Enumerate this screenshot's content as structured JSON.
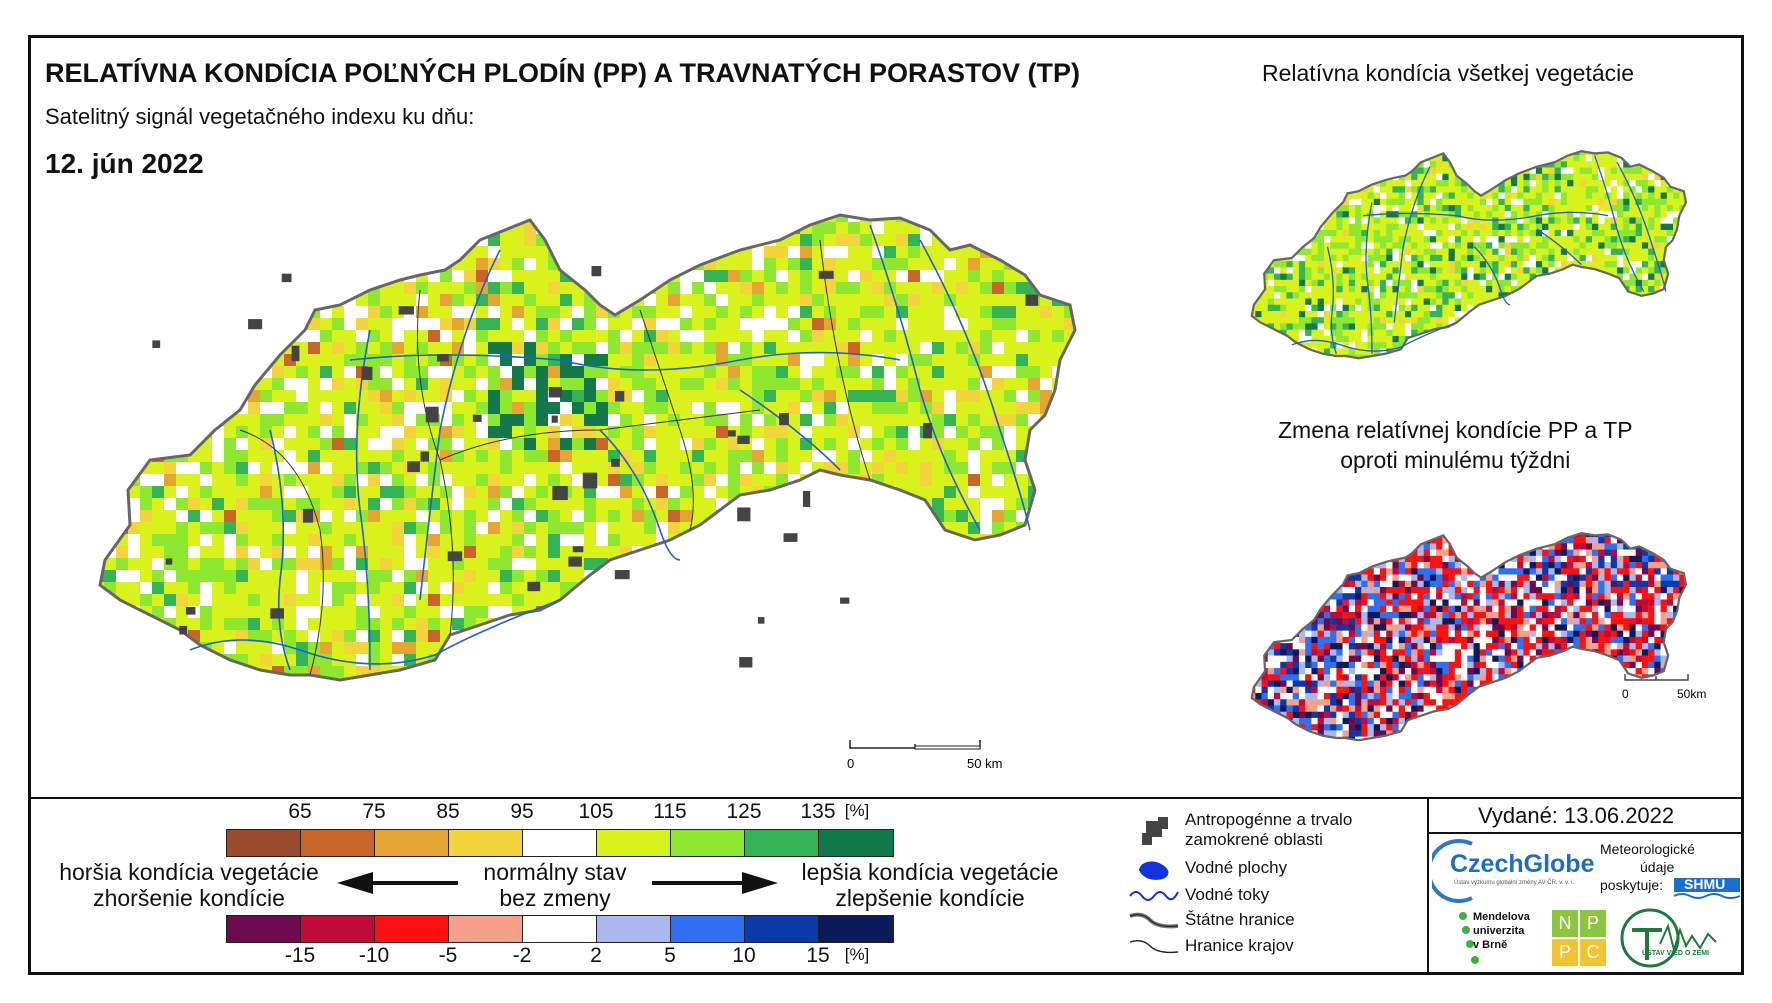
{
  "title": "RELATÍVNA KONDÍCIA POĽNÝCH PLODÍN (PP) A TRAVNATÝCH PORASTOV (TP)",
  "subtitle": "Satelitný signál vegetačného indexu ku dňu:",
  "date": "12. jún 2022",
  "right_maps": {
    "top_title": "Relatívna kondícia všetkej vegetácie",
    "bottom_title_line1": "Zmena relatívnej kondície PP a TP",
    "bottom_title_line2": "oproti minulému týždni"
  },
  "scale_main": {
    "start": "0",
    "end": "50 km"
  },
  "scale_small": {
    "start": "0",
    "end": "50km"
  },
  "legend": {
    "condition_ticks": [
      "65",
      "75",
      "85",
      "95",
      "105",
      "115",
      "125",
      "135",
      "[%]"
    ],
    "condition_colors": [
      "#9c4a2e",
      "#c8662a",
      "#e5a533",
      "#f3d43a",
      "#ffffff",
      "#d9f21c",
      "#8ee830",
      "#34b454",
      "#12794a"
    ],
    "change_ticks": [
      "-15",
      "-10",
      "-5",
      "-2",
      "2",
      "5",
      "10",
      "15",
      "[%]"
    ],
    "change_colors": [
      "#6d0a4e",
      "#c10a3a",
      "#ff1010",
      "#f5a08a",
      "#ffffff",
      "#a9b8ef",
      "#2f6ff2",
      "#0b3aa8",
      "#0b1a58"
    ],
    "left_line1": "horšia kondícia vegetácie",
    "left_line2": "zhoršenie kondície",
    "center_line1": "normálny stav",
    "center_line2": "bez zmeny",
    "right_line1": "lepšia kondícia vegetácie",
    "right_line2": "zlepšenie kondície"
  },
  "key": {
    "urban_line1": "Antropogénne a trvalo",
    "urban_line2": "zamokrené oblasti",
    "water_bodies": "Vodné plochy",
    "rivers": "Vodné toky",
    "state_border": "Štátne hranice",
    "region_border": "Hranice krajov"
  },
  "issued": "Vydané: 13.06.2022",
  "logos": {
    "czechglobe": "CzechGlobe",
    "czechglobe_sub": "Ústav výzkumu globální změny AV ČR, v. v. i.",
    "meteo_line1": "Meteorologické",
    "meteo_line2": "údaje",
    "meteo_line3": "poskytuje:",
    "shmu": "SHMÚ",
    "mendel_line1": "Mendelova",
    "mendel_line2": "univerzita",
    "mendel_line3": "v Brně",
    "nppc": [
      "N",
      "P",
      "P",
      "C"
    ],
    "uvz": "ÚSTAV VIED O ZEMI"
  }
}
